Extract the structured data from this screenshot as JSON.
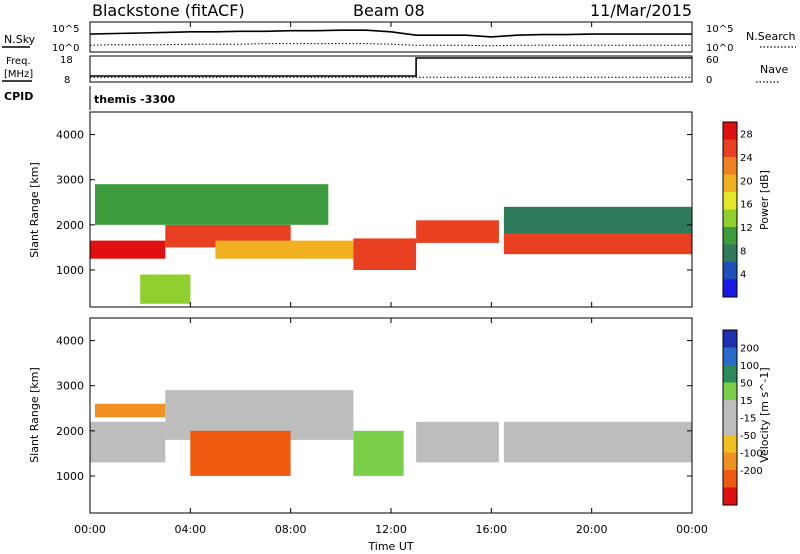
{
  "header": {
    "station": "Blackstone (fitACF)",
    "beam": "Beam 08",
    "date": "11/Mar/2015"
  },
  "labels": {
    "nsky": "N.Sky",
    "nsearch": "N.Search",
    "freq": "Freq.",
    "freq_unit": "[MHz]",
    "nave": "Nave",
    "cpid": "CPID",
    "cpid_value": "themis -3300",
    "nsky_ticks": [
      "10^5",
      "10^0"
    ],
    "nsearch_ticks": [
      "10^5",
      "10^0"
    ],
    "freq_ticks": [
      "18",
      "8"
    ],
    "nave_ticks": [
      "60",
      "0"
    ],
    "power_colorbar_title": "Power [dB]",
    "velocity_colorbar_title": "Velocity [m s^-1]"
  },
  "colors": {
    "power_scale": [
      "#1a1ae6",
      "#1f4fb8",
      "#2f7a5a",
      "#3d9c3d",
      "#8fcf2e",
      "#e6e62a",
      "#f0b020",
      "#f08020",
      "#e84020",
      "#e01010"
    ],
    "velocity_scale": [
      "#1f2fb0",
      "#2a6ac8",
      "#2a8a5a",
      "#7ad04a",
      "#bdbdbd",
      "#bdbdbd",
      "#f0c020",
      "#f09020",
      "#f05a10",
      "#e01010"
    ]
  },
  "chart_data": [
    {
      "type": "line",
      "panel": "N.Sky / N.Search",
      "xlabel": "",
      "ylabel": "",
      "x": [
        "00:00",
        "01:00",
        "02:00",
        "03:00",
        "04:00",
        "05:00",
        "06:00",
        "07:00",
        "08:00",
        "09:00",
        "10:00",
        "11:00",
        "12:00",
        "13:00",
        "14:00",
        "15:00",
        "16:00",
        "17:00",
        "18:00",
        "19:00",
        "20:00",
        "21:00",
        "22:00",
        "23:00",
        "24:00"
      ],
      "series": [
        {
          "name": "N.Sky",
          "values": [
            3.2,
            3.3,
            3.4,
            3.5,
            3.6,
            3.6,
            3.7,
            3.7,
            3.8,
            3.8,
            3.9,
            3.9,
            3.6,
            3.0,
            3.0,
            3.0,
            2.7,
            3.0,
            3.1,
            3.1,
            3.2,
            3.2,
            3.2,
            3.2,
            3.2
          ]
        },
        {
          "name": "N.Search",
          "values": [
            1.2,
            1.3,
            1.3,
            1.3,
            1.4,
            1.4,
            1.4,
            1.5,
            1.5,
            1.5,
            1.5,
            1.5,
            1.4,
            1.2,
            1.2,
            1.2,
            1.1,
            1.2,
            1.2,
            1.2,
            1.2,
            1.2,
            1.2,
            1.2,
            1.2
          ]
        }
      ]
    },
    {
      "type": "line",
      "panel": "Freq. / Nave",
      "xlabel": "",
      "ylabel": "",
      "x": [
        "00:00",
        "13:00",
        "13:00",
        "24:00"
      ],
      "series": [
        {
          "name": "Freq.",
          "values": [
            10.5,
            10.5,
            18,
            18
          ]
        },
        {
          "name": "Nave",
          "values": [
            12,
            12,
            12,
            12
          ]
        }
      ]
    },
    {
      "type": "heatmap",
      "panel": "Power",
      "xlabel": "",
      "ylabel": "Slant Range [km]",
      "xlim": [
        0,
        24
      ],
      "ylim": [
        180,
        4500
      ],
      "yticks": [
        1000,
        2000,
        3000,
        4000
      ],
      "colorbar_ticks": [
        4,
        8,
        12,
        16,
        20,
        24,
        28
      ],
      "colorbar_range": [
        0,
        30
      ],
      "bands": [
        {
          "t0": 0.0,
          "t1": 3.0,
          "r0": 1250,
          "r1": 1650,
          "level": 27
        },
        {
          "t0": 3.0,
          "t1": 8.0,
          "r0": 1500,
          "r1": 2000,
          "level": 24
        },
        {
          "t0": 0.2,
          "t1": 9.5,
          "r0": 2000,
          "r1": 2900,
          "level": 10
        },
        {
          "t0": 5.0,
          "t1": 10.5,
          "r0": 1250,
          "r1": 1650,
          "level": 18
        },
        {
          "t0": 10.5,
          "t1": 13.0,
          "r0": 1000,
          "r1": 1700,
          "level": 24
        },
        {
          "t0": 13.0,
          "t1": 16.3,
          "r0": 1600,
          "r1": 2100,
          "level": 24
        },
        {
          "t0": 16.5,
          "t1": 24.0,
          "r0": 1350,
          "r1": 1800,
          "level": 24
        },
        {
          "t0": 16.5,
          "t1": 24.0,
          "r0": 1800,
          "r1": 2400,
          "level": 8
        },
        {
          "t0": 2.0,
          "t1": 4.0,
          "r0": 250,
          "r1": 900,
          "level": 14
        }
      ]
    },
    {
      "type": "heatmap",
      "panel": "Velocity",
      "xlabel": "Time UT",
      "ylabel": "Slant Range [km]",
      "xlim": [
        0,
        24
      ],
      "ylim": [
        180,
        4500
      ],
      "yticks": [
        1000,
        2000,
        3000,
        4000
      ],
      "xticks": [
        "00:00",
        "04:00",
        "08:00",
        "12:00",
        "16:00",
        "20:00",
        "00:00"
      ],
      "colorbar_ticks": [
        -200,
        -100,
        -50,
        -15,
        15,
        50,
        100,
        200
      ],
      "bands": [
        {
          "t0": 0.0,
          "t1": 3.0,
          "r0": 1300,
          "r1": 2200,
          "level": 0
        },
        {
          "t0": 3.0,
          "t1": 10.5,
          "r0": 1800,
          "r1": 2900,
          "level": 0
        },
        {
          "t0": 4.0,
          "t1": 8.0,
          "r0": 1000,
          "r1": 2000,
          "level": -100
        },
        {
          "t0": 10.5,
          "t1": 12.5,
          "r0": 1000,
          "r1": 2000,
          "level": 40
        },
        {
          "t0": 13.0,
          "t1": 16.3,
          "r0": 1300,
          "r1": 2200,
          "level": 0
        },
        {
          "t0": 16.5,
          "t1": 24.0,
          "r0": 1300,
          "r1": 2200,
          "level": 0
        },
        {
          "t0": 0.2,
          "t1": 3.0,
          "r0": 2300,
          "r1": 2600,
          "level": -50
        }
      ]
    }
  ]
}
